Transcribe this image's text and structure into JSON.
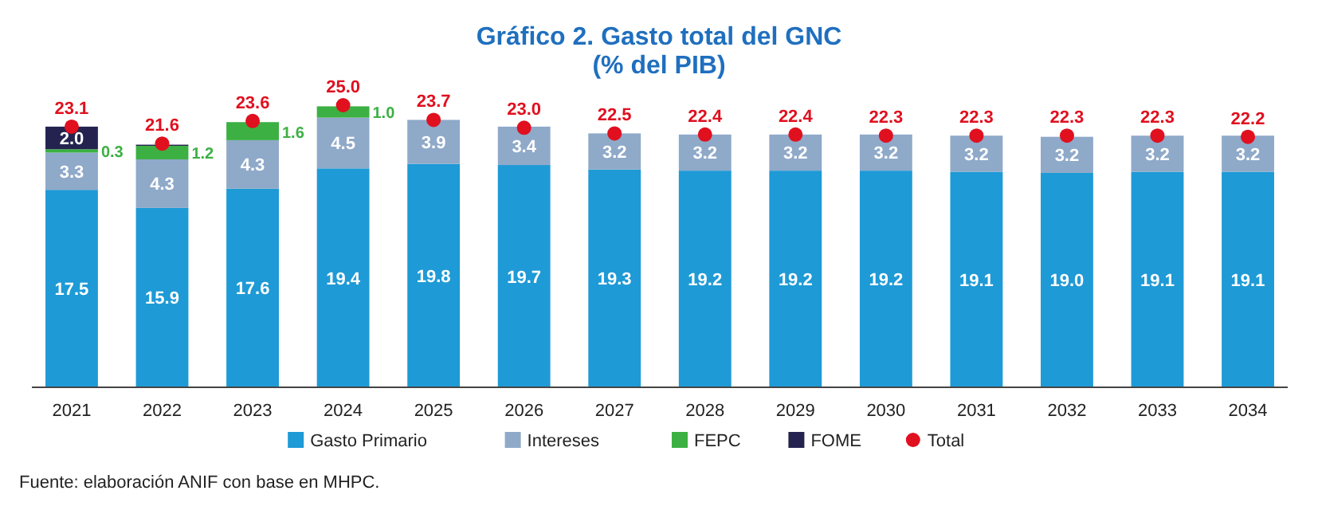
{
  "chart_data": {
    "type": "bar",
    "title": "Gráfico 2. Gasto total del GNC",
    "subtitle": "(% del PIB)",
    "stacked": true,
    "legend": "bottom",
    "categories": [
      "2021",
      "2022",
      "2023",
      "2024",
      "2025",
      "2026",
      "2027",
      "2028",
      "2029",
      "2030",
      "2031",
      "2032",
      "2033",
      "2034"
    ],
    "series": [
      {
        "name": "Gasto Primario",
        "color": "#1e9ad6",
        "values": [
          17.5,
          15.9,
          17.6,
          19.4,
          19.8,
          19.7,
          19.3,
          19.2,
          19.2,
          19.2,
          19.1,
          19.0,
          19.1,
          19.1
        ],
        "value_labels": [
          "17.5",
          "15.9",
          "17.6",
          "19.4",
          "19.8",
          "19.7",
          "19.3",
          "19.2",
          "19.2",
          "19.2",
          "19.1",
          "19.0",
          "19.1",
          "19.1"
        ]
      },
      {
        "name": "Intereses",
        "color": "#8fa9c9",
        "values": [
          3.3,
          4.3,
          4.3,
          4.5,
          3.9,
          3.4,
          3.2,
          3.2,
          3.2,
          3.2,
          3.2,
          3.2,
          3.2,
          3.2
        ],
        "value_labels": [
          "3.3",
          "4.3",
          "4.3",
          "4.5",
          "3.9",
          "3.4",
          "3.2",
          "3.2",
          "3.2",
          "3.2",
          "3.2",
          "3.2",
          "3.2",
          "3.2"
        ]
      },
      {
        "name": "FEPC",
        "color": "#3cb043",
        "values": [
          0.3,
          1.2,
          1.6,
          1.0,
          null,
          null,
          null,
          null,
          null,
          null,
          null,
          null,
          null,
          null
        ],
        "value_labels": [
          "0.3",
          "1.2",
          "1.6",
          "1.0",
          null,
          null,
          null,
          null,
          null,
          null,
          null,
          null,
          null,
          null
        ]
      },
      {
        "name": "FOME",
        "color": "#24234f",
        "values": [
          2.0,
          0.1,
          null,
          null,
          null,
          null,
          null,
          null,
          null,
          null,
          null,
          null,
          null,
          null
        ],
        "value_labels": [
          "2.0",
          null,
          null,
          null,
          null,
          null,
          null,
          null,
          null,
          null,
          null,
          null,
          null,
          null
        ]
      },
      {
        "name": "Total",
        "type": "scatter",
        "marker": "circle",
        "color": "#e0101f",
        "values": [
          23.1,
          21.6,
          23.6,
          25.0,
          23.7,
          23.0,
          22.5,
          22.4,
          22.4,
          22.3,
          22.3,
          22.3,
          22.3,
          22.2
        ],
        "value_labels": [
          "23.1",
          "21.6",
          "23.6",
          "25.0",
          "23.7",
          "23.0",
          "22.5",
          "22.4",
          "22.4",
          "22.3",
          "22.3",
          "22.3",
          "22.3",
          "22.2"
        ]
      }
    ],
    "annotations": [
      "Fuente: elaboración ANIF con base en MHPC."
    ]
  }
}
